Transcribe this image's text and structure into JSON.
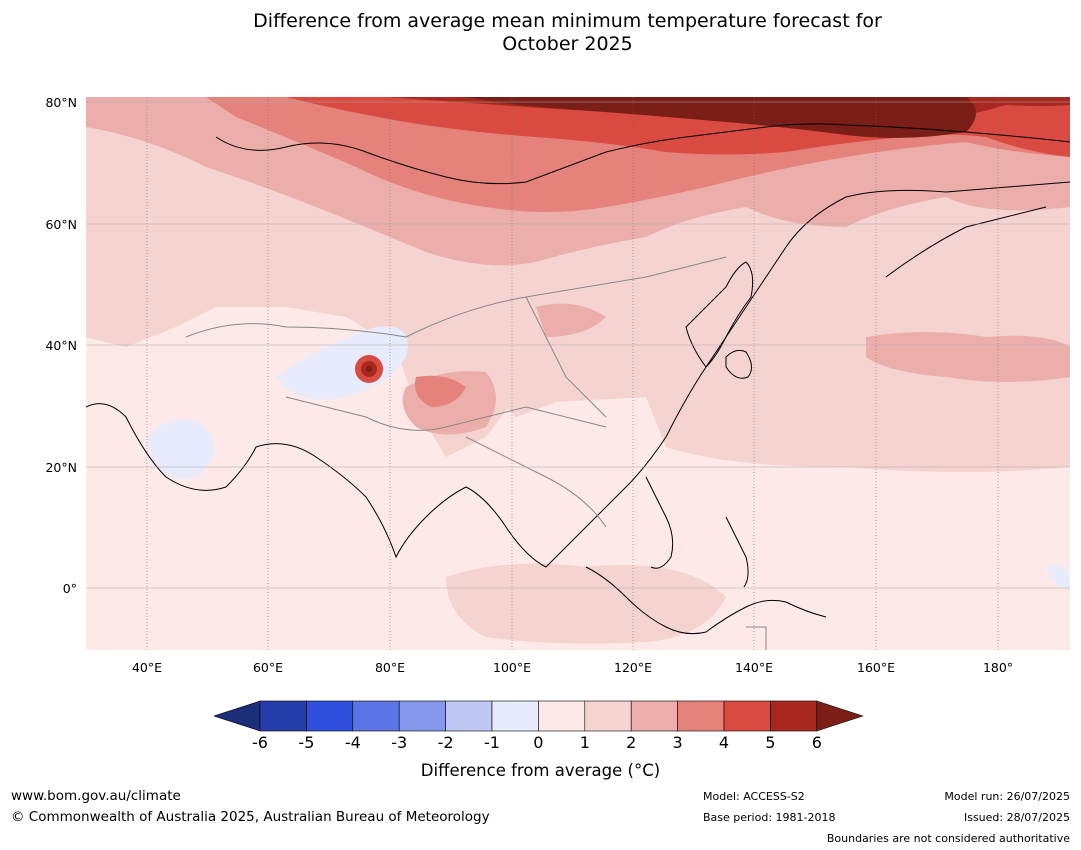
{
  "title_line1": "Difference from average mean minimum temperature forecast for",
  "title_line2": "October 2025",
  "map": {
    "lat_labels": [
      "80°N",
      "60°N",
      "40°N",
      "20°N",
      "0°"
    ],
    "lon_labels": [
      "40°E",
      "60°E",
      "80°E",
      "100°E",
      "120°E",
      "140°E",
      "160°E",
      "180°"
    ]
  },
  "colorbar": {
    "ticks": [
      "-6",
      "-5",
      "-4",
      "-3",
      "-2",
      "-1",
      "0",
      "1",
      "2",
      "3",
      "4",
      "5",
      "6"
    ],
    "colors": [
      "#1c2d7a",
      "#263ca8",
      "#2f4fdc",
      "#5d74e5",
      "#8798ec",
      "#bfc8f4",
      "#e8ebfb",
      "#fce9e8",
      "#f5d3d1",
      "#ecaeab",
      "#e5827c",
      "#d94a40",
      "#a8281f",
      "#7a1e17"
    ],
    "label": "Difference from average (°C)"
  },
  "footer": {
    "website": "www.bom.gov.au/climate",
    "copyright": "© Commonwealth of Australia 2025, Australian Bureau of Meteorology",
    "model": "Model: ACCESS-S2",
    "base_period": "Base period: 1981-2018",
    "model_run": "Model run: 26/07/2025",
    "issued": "Issued: 28/07/2025",
    "disclaimer": "Boundaries are not considered authoritative"
  }
}
